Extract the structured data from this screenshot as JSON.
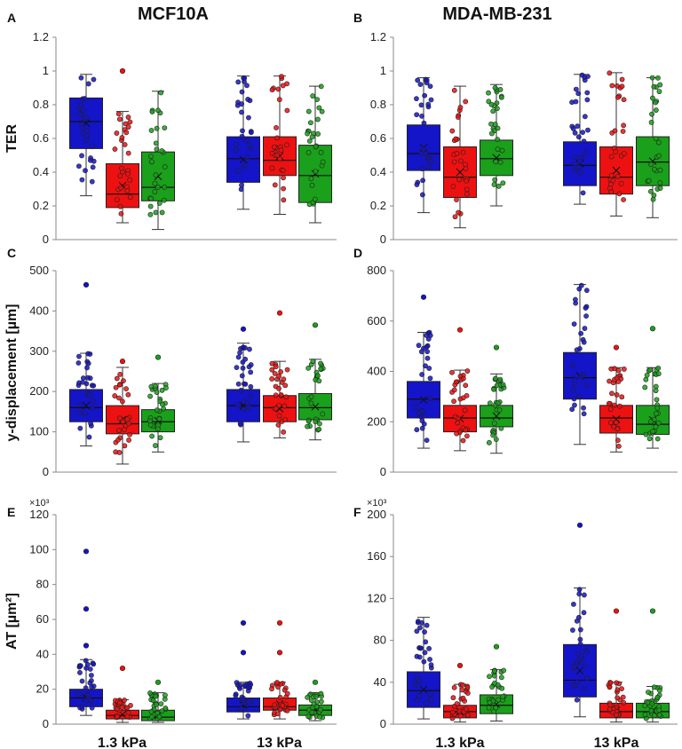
{
  "columns": [
    "MCF10A",
    "MDA-MB-231"
  ],
  "categories": [
    "1.3 kPa",
    "13 kPa"
  ],
  "series_colors": [
    "#1414c8",
    "#ee1111",
    "#1aa01a"
  ],
  "chart_data": [
    {
      "letter": "A",
      "type": "box",
      "ylabel": "TER",
      "ylim": [
        0,
        1.2
      ],
      "yticks": [
        "0",
        "0.2",
        "0.4",
        "0.6",
        "0.8",
        "1",
        "1.2"
      ],
      "tick_values": [
        0,
        0.2,
        0.4,
        0.6,
        0.8,
        1,
        1.2
      ],
      "multiplier": "",
      "boxes": [
        [
          [
            0.26,
            0.54,
            0.7,
            0.84,
            0.98
          ],
          [
            0.1,
            0.19,
            0.27,
            0.45,
            0.76
          ],
          [
            0.06,
            0.23,
            0.31,
            0.52,
            0.88
          ]
        ],
        [
          [
            0.18,
            0.34,
            0.48,
            0.61,
            0.97
          ],
          [
            0.15,
            0.38,
            0.47,
            0.61,
            0.97
          ],
          [
            0.1,
            0.22,
            0.38,
            0.56,
            0.91
          ]
        ]
      ],
      "outliers": [
        [
          [],
          [
            1.0
          ],
          []
        ],
        [
          [],
          [],
          []
        ]
      ]
    },
    {
      "letter": "B",
      "type": "box",
      "ylabel": "",
      "ylim": [
        0,
        1.2
      ],
      "yticks": [
        "0",
        "0.2",
        "0.4",
        "0.6",
        "0.8",
        "1",
        "1.2"
      ],
      "tick_values": [
        0,
        0.2,
        0.4,
        0.6,
        0.8,
        1,
        1.2
      ],
      "multiplier": "",
      "boxes": [
        [
          [
            0.16,
            0.41,
            0.51,
            0.68,
            0.96
          ],
          [
            0.07,
            0.25,
            0.37,
            0.55,
            0.91
          ],
          [
            0.2,
            0.38,
            0.48,
            0.59,
            0.92
          ]
        ],
        [
          [
            0.21,
            0.32,
            0.44,
            0.58,
            0.98
          ],
          [
            0.14,
            0.27,
            0.37,
            0.55,
            0.99
          ],
          [
            0.13,
            0.32,
            0.46,
            0.61,
            0.96
          ]
        ]
      ],
      "outliers": [
        [
          [],
          [],
          []
        ],
        [
          [],
          [],
          []
        ]
      ]
    },
    {
      "letter": "C",
      "type": "box",
      "ylabel": "y-displacement [µm]",
      "ylim": [
        0,
        500
      ],
      "yticks": [
        "0",
        "100",
        "200",
        "300",
        "400",
        "500"
      ],
      "tick_values": [
        0,
        100,
        200,
        300,
        400,
        500
      ],
      "multiplier": "",
      "boxes": [
        [
          [
            65,
            125,
            160,
            205,
            295
          ],
          [
            20,
            95,
            120,
            165,
            260
          ],
          [
            50,
            100,
            125,
            155,
            220
          ]
        ],
        [
          [
            75,
            125,
            165,
            205,
            320
          ],
          [
            85,
            125,
            160,
            190,
            275
          ],
          [
            80,
            130,
            160,
            195,
            280
          ]
        ]
      ],
      "outliers": [
        [
          [
            465
          ],
          [
            275
          ],
          [
            285
          ]
        ],
        [
          [
            355
          ],
          [
            395
          ],
          [
            365
          ]
        ]
      ]
    },
    {
      "letter": "D",
      "type": "box",
      "ylabel": "",
      "ylim": [
        0,
        800
      ],
      "yticks": [
        "0",
        "200",
        "400",
        "600",
        "800"
      ],
      "tick_values": [
        0,
        200,
        400,
        600,
        800
      ],
      "multiplier": "",
      "boxes": [
        [
          [
            95,
            215,
            290,
            360,
            555
          ],
          [
            85,
            160,
            215,
            265,
            405
          ],
          [
            75,
            180,
            215,
            265,
            390
          ]
        ],
        [
          [
            110,
            290,
            375,
            475,
            745
          ],
          [
            80,
            155,
            215,
            265,
            415
          ],
          [
            95,
            150,
            190,
            265,
            415
          ]
        ]
      ],
      "outliers": [
        [
          [
            695
          ],
          [
            565
          ],
          [
            495
          ]
        ],
        [
          [],
          [
            495
          ],
          [
            570
          ]
        ]
      ]
    },
    {
      "letter": "E",
      "type": "box",
      "ylabel": "AT [µm²]",
      "ylim": [
        0,
        120
      ],
      "yticks": [
        "0",
        "20",
        "40",
        "60",
        "80",
        "100",
        "120"
      ],
      "tick_values": [
        0,
        20,
        40,
        60,
        80,
        100,
        120
      ],
      "multiplier": "×10³",
      "boxes": [
        [
          [
            5,
            10,
            15,
            20,
            37
          ],
          [
            1,
            3,
            5,
            8,
            14
          ],
          [
            1,
            2,
            4,
            8,
            18
          ]
        ],
        [
          [
            3,
            7,
            10,
            15,
            24
          ],
          [
            3,
            8,
            10,
            15,
            24
          ],
          [
            2,
            5,
            8,
            11,
            18
          ]
        ]
      ],
      "outliers": [
        [
          [
            99,
            66,
            45
          ],
          [
            32
          ],
          [
            24
          ]
        ],
        [
          [
            58,
            41
          ],
          [
            58,
            41
          ],
          [
            24
          ]
        ]
      ]
    },
    {
      "letter": "F",
      "type": "box",
      "ylabel": "",
      "ylim": [
        0,
        200
      ],
      "yticks": [
        "0",
        "40",
        "80",
        "120",
        "160",
        "200"
      ],
      "tick_values": [
        0,
        40,
        80,
        120,
        160,
        200
      ],
      "multiplier": "×10³",
      "boxes": [
        [
          [
            5,
            16,
            32,
            50,
            102
          ],
          [
            2,
            6,
            12,
            18,
            38
          ],
          [
            3,
            10,
            18,
            28,
            52
          ]
        ],
        [
          [
            7,
            26,
            42,
            76,
            130
          ],
          [
            2,
            6,
            12,
            20,
            40
          ],
          [
            2,
            6,
            12,
            20,
            36
          ]
        ]
      ],
      "outliers": [
        [
          [],
          [
            56
          ],
          [
            74
          ]
        ],
        [
          [
            190
          ],
          [
            108
          ],
          [
            108
          ]
        ]
      ]
    }
  ]
}
